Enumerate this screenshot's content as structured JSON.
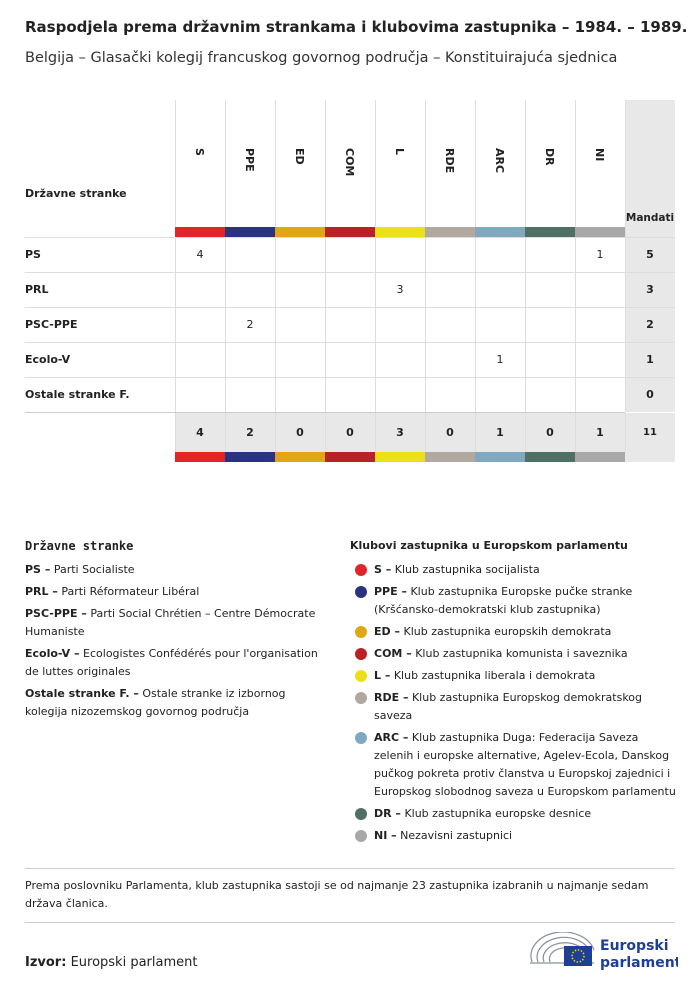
{
  "header": {
    "title": "Raspodjela prema državnim strankama i klubovima zastupnika – 1984. – 1989.",
    "subtitle": "Belgija – Glasački kolegij francuskog govornog područja – Konstituirajuća sjednica"
  },
  "table": {
    "row_header": "Državne stranke",
    "total_header": "Mandati",
    "columns": [
      {
        "label": "S",
        "color": "#e2252b"
      },
      {
        "label": "PPE",
        "color": "#2a337e"
      },
      {
        "label": "ED",
        "color": "#e0a614"
      },
      {
        "label": "COM",
        "color": "#b82126"
      },
      {
        "label": "L",
        "color": "#ebe01a"
      },
      {
        "label": "RDE",
        "color": "#b1a99f"
      },
      {
        "label": "ARC",
        "color": "#80a9c0"
      },
      {
        "label": "DR",
        "color": "#506f65"
      },
      {
        "label": "NI",
        "color": "#a8a8a8"
      }
    ],
    "rows": [
      {
        "party": "PS",
        "cells": [
          4,
          null,
          null,
          null,
          null,
          null,
          null,
          null,
          1
        ],
        "total": 5
      },
      {
        "party": "PRL",
        "cells": [
          null,
          null,
          null,
          null,
          3,
          null,
          null,
          null,
          null
        ],
        "total": 3
      },
      {
        "party": "PSC-PPE",
        "cells": [
          null,
          2,
          null,
          null,
          null,
          null,
          null,
          null,
          null
        ],
        "total": 2
      },
      {
        "party": "Ecolo-V",
        "cells": [
          null,
          null,
          null,
          null,
          null,
          null,
          1,
          null,
          null
        ],
        "total": 1
      },
      {
        "party": "Ostale stranke F.",
        "cells": [
          null,
          null,
          null,
          null,
          null,
          null,
          null,
          null,
          null
        ],
        "total": 0
      }
    ],
    "totals": [
      4,
      2,
      0,
      0,
      3,
      0,
      1,
      0,
      1
    ],
    "grand_total": 11
  },
  "national_legend": {
    "title": "Državne stranke",
    "items": [
      {
        "abbr": "PS –",
        "text": "Parti Socialiste"
      },
      {
        "abbr": "PRL –",
        "text": "Parti Réformateur Libéral"
      },
      {
        "abbr": "PSC-PPE –",
        "text": "Parti Social Chrétien – Centre Démocrate Humaniste"
      },
      {
        "abbr": "Ecolo-V –",
        "text": "Ecologistes Confédérés pour l'organisation de luttes originales"
      },
      {
        "abbr": "Ostale stranke F. –",
        "text": "Ostale stranke iz izbornog kolegija nizozemskog govornog područja"
      }
    ]
  },
  "group_legend": {
    "title": "Klubovi zastupnika u Europskom parlamentu",
    "items": [
      {
        "abbr": "S –",
        "text": "Klub zastupnika socijalista",
        "color": "#e2252b"
      },
      {
        "abbr": "PPE –",
        "text": "Klub zastupnika Europske pučke stranke (Kršćansko-demokratski klub zastupnika)",
        "color": "#2a337e"
      },
      {
        "abbr": "ED –",
        "text": "Klub zastupnika europskih demokrata",
        "color": "#e0a614"
      },
      {
        "abbr": "COM –",
        "text": "Klub zastupnika komunista i saveznika",
        "color": "#b82126"
      },
      {
        "abbr": "L –",
        "text": "Klub zastupnika liberala i demokrata",
        "color": "#ebe01a"
      },
      {
        "abbr": "RDE –",
        "text": "Klub zastupnika Europskog demokratskog saveza",
        "color": "#b1a99f"
      },
      {
        "abbr": "ARC –",
        "text": "Klub zastupnika Duga: Federacija Saveza zelenih i europske alternative, Agelev-Ecola, Danskog pučkog pokreta protiv članstva u Europskoj zajednici i Europskog slobodnog saveza u Europskom parlamentu",
        "color": "#80a9c0"
      },
      {
        "abbr": "DR –",
        "text": "Klub zastupnika europske desnice",
        "color": "#506f65"
      },
      {
        "abbr": "NI –",
        "text": "Nezavisni zastupnici",
        "color": "#a8a8a8"
      }
    ]
  },
  "note": "Prema poslovniku Parlamenta, klub zastupnika sastoji se od najmanje 23 zastupnika izabranih u najmanje sedam država članica.",
  "source": {
    "label": "Izvor:",
    "text": "Europski parlament"
  },
  "logo": {
    "line1": "Europski",
    "line2": "parlament"
  }
}
